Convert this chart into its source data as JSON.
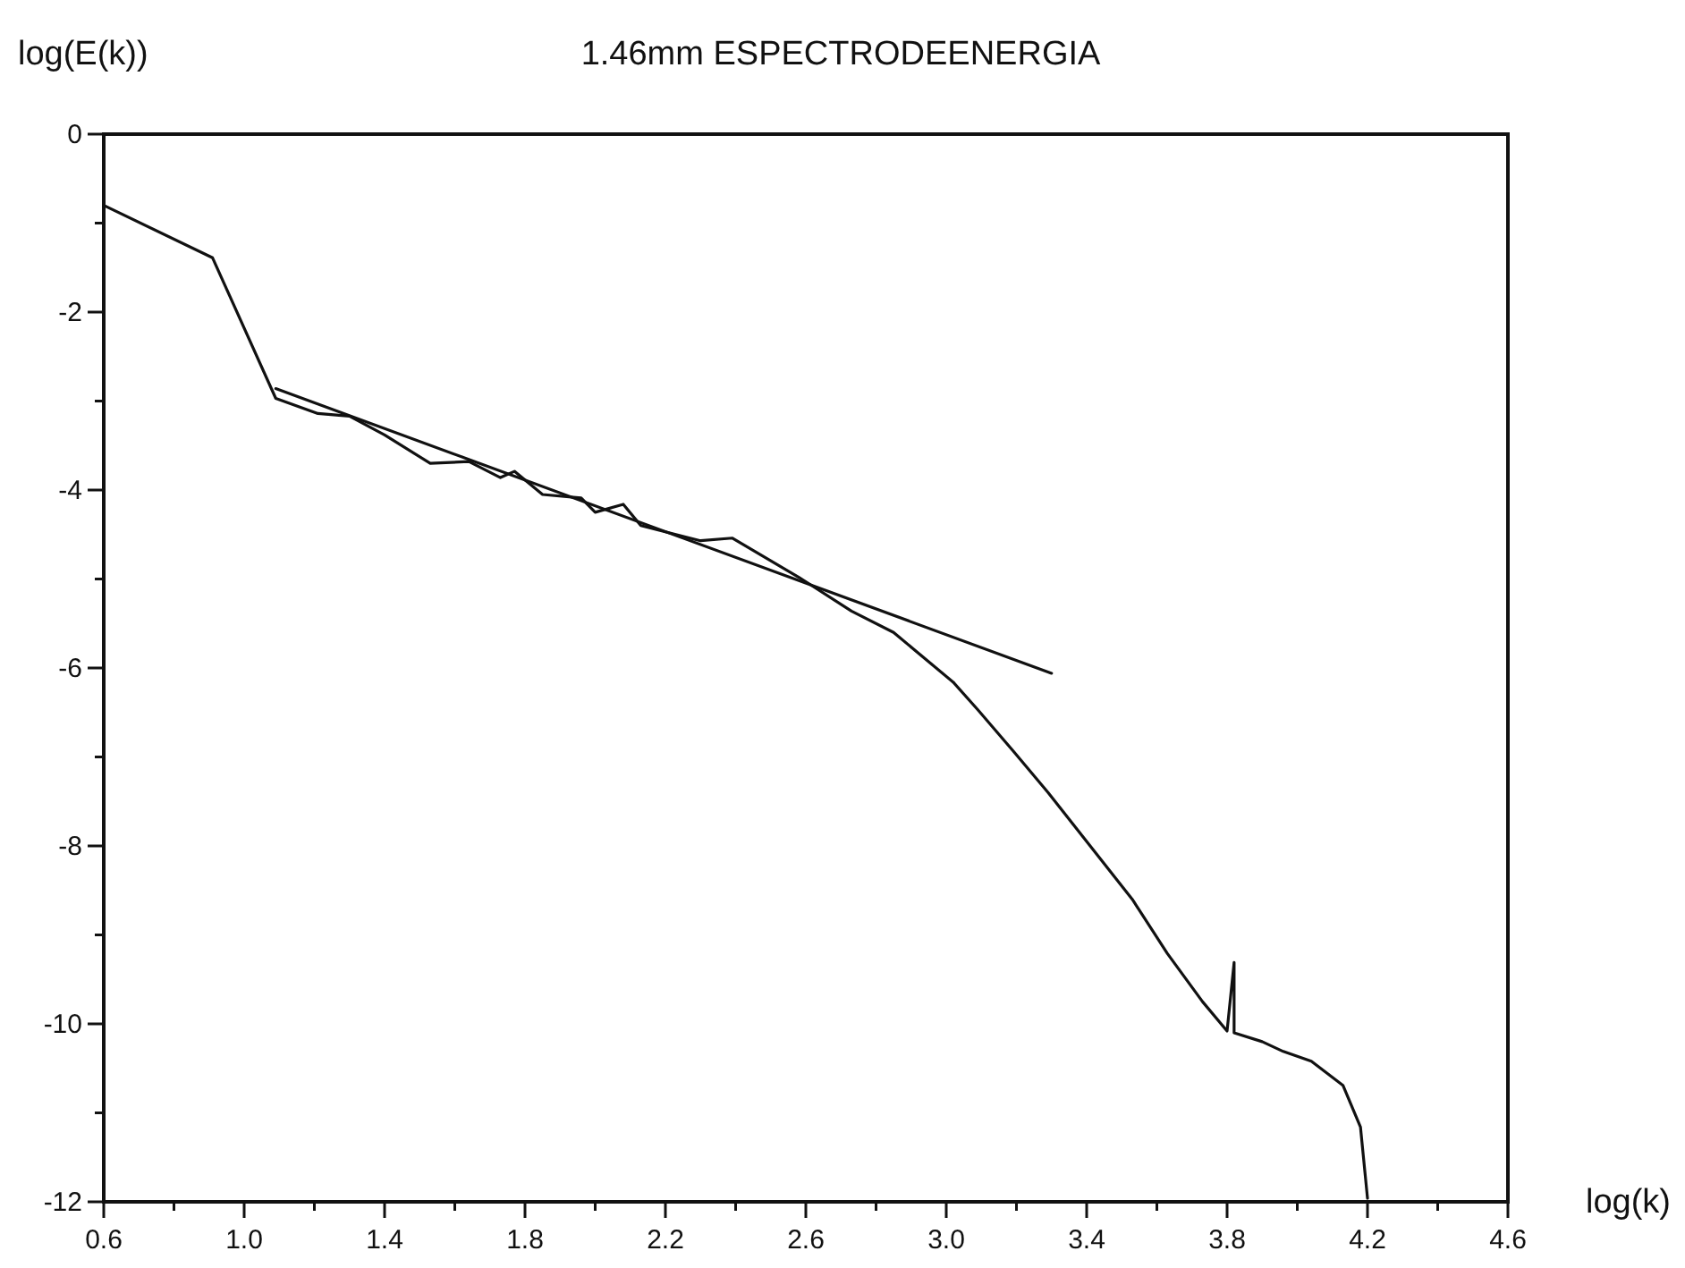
{
  "chart_data": {
    "type": "line",
    "title": "1.46mm ESPECTRODEENERGIA",
    "xlabel": "log(k)",
    "ylabel": "log(E(k))",
    "xlim": [
      0.6,
      4.6
    ],
    "ylim": [
      -12,
      0
    ],
    "xticks": [
      {
        "value": 0.6,
        "label": "0.6"
      },
      {
        "value": 0.8,
        "label": null
      },
      {
        "value": 1.0,
        "label": "1.0"
      },
      {
        "value": 1.2,
        "label": null
      },
      1.4,
      {
        "value": 1.6,
        "label": null
      },
      1.8,
      {
        "value": 2.0,
        "label": null
      },
      2.2,
      {
        "value": 2.4,
        "label": null
      },
      2.6,
      {
        "value": 2.8,
        "label": null
      },
      {
        "value": 3.0,
        "label": "3.0"
      },
      {
        "value": 3.2,
        "label": null
      },
      3.4,
      {
        "value": 3.6,
        "label": null
      },
      3.8,
      {
        "value": 4.0,
        "label": null
      },
      4.2,
      {
        "value": 4.4,
        "label": null
      },
      4.6
    ],
    "yticks": [
      {
        "value": -12,
        "label": "-12"
      },
      {
        "value": -11,
        "label": null
      },
      -10,
      {
        "value": -9,
        "label": null
      },
      -8,
      {
        "value": -7,
        "label": null
      },
      -6,
      {
        "value": -5,
        "label": null
      },
      -4,
      {
        "value": -3,
        "label": null
      },
      -2,
      {
        "value": -1,
        "label": null
      },
      0
    ],
    "grid": false,
    "marker": "none",
    "line_style": "solid",
    "series": [
      {
        "color": "#111111",
        "x": [
          0.6,
          0.91,
          1.09,
          1.21,
          1.3,
          1.4,
          1.53,
          1.64,
          1.73,
          1.77,
          1.85,
          1.96,
          2.0,
          2.08,
          2.13,
          2.3,
          2.39,
          2.58,
          2.73,
          2.85,
          3.02,
          3.09,
          3.19,
          3.29,
          3.41,
          3.53,
          3.63,
          3.73,
          3.8,
          3.82,
          3.82,
          3.9,
          3.96,
          4.04,
          4.13,
          4.18,
          4.2
        ],
        "values": [
          -0.8,
          -1.39,
          -2.97,
          -3.14,
          -3.17,
          -3.38,
          -3.7,
          -3.68,
          -3.86,
          -3.79,
          -4.05,
          -4.09,
          -4.25,
          -4.16,
          -4.4,
          -4.57,
          -4.54,
          -4.98,
          -5.36,
          -5.6,
          -6.16,
          -6.47,
          -6.93,
          -7.4,
          -8.0,
          -8.6,
          -9.21,
          -9.75,
          -10.08,
          -9.31,
          -10.1,
          -10.2,
          -10.31,
          -10.42,
          -10.69,
          -11.16,
          -11.96
        ]
      },
      {
        "type": "line",
        "color": "#111111",
        "x": [
          1.09,
          3.3
        ],
        "values": [
          -2.86,
          -6.06
        ]
      }
    ]
  }
}
